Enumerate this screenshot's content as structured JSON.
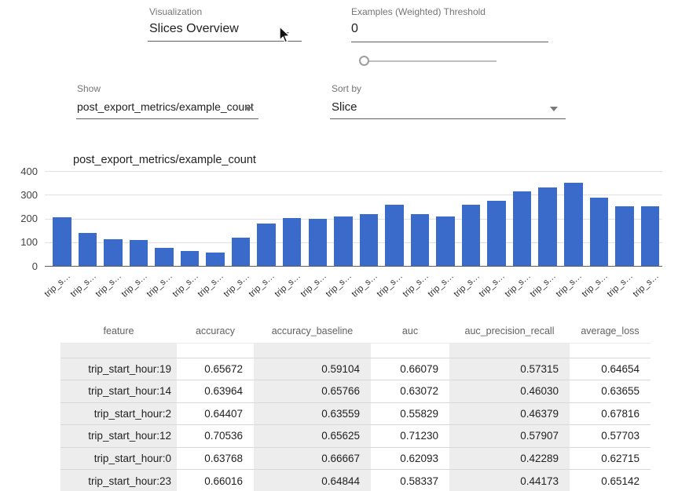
{
  "controls": {
    "visualization": {
      "label": "Visualization",
      "value": "Slices Overview"
    },
    "threshold": {
      "label": "Examples (Weighted) Threshold",
      "value": "0"
    },
    "show": {
      "label": "Show",
      "value": "post_export_metrics/example_count"
    },
    "sort": {
      "label": "Sort by",
      "value": "Slice"
    }
  },
  "chart_data": {
    "type": "bar",
    "legend": "post_export_metrics/example_count",
    "bar_color": "#3b6bca",
    "xlabel": "",
    "ylabel": "",
    "ylim": [
      0,
      400
    ],
    "yticks": [
      0,
      100,
      200,
      300,
      400
    ],
    "grid": true,
    "legend_position": "top-left",
    "categories": [
      "trip_s…",
      "trip_s…",
      "trip_s…",
      "trip_s…",
      "trip_s…",
      "trip_s…",
      "trip_s…",
      "trip_s…",
      "trip_s…",
      "trip_s…",
      "trip_s…",
      "trip_s…",
      "trip_s…",
      "trip_s…",
      "trip_s…",
      "trip_s…",
      "trip_s…",
      "trip_s…",
      "trip_s…",
      "trip_s…",
      "trip_s…",
      "trip_s…",
      "trip_s…",
      "trip_s…"
    ],
    "values": [
      205,
      140,
      112,
      108,
      75,
      64,
      57,
      118,
      177,
      203,
      200,
      207,
      218,
      259,
      219,
      207,
      258,
      275,
      313,
      331,
      352,
      288,
      250,
      252
    ]
  },
  "table": {
    "columns": [
      "feature",
      "accuracy",
      "accuracy_baseline",
      "auc",
      "auc_precision_recall",
      "average_loss"
    ],
    "rows": [
      [
        "trip_start_hour:19",
        "0.65672",
        "0.59104",
        "0.66079",
        "0.57315",
        "0.64654"
      ],
      [
        "trip_start_hour:14",
        "0.63964",
        "0.65766",
        "0.63072",
        "0.46030",
        "0.63655"
      ],
      [
        "trip_start_hour:2",
        "0.64407",
        "0.63559",
        "0.55829",
        "0.46379",
        "0.67816"
      ],
      [
        "trip_start_hour:12",
        "0.70536",
        "0.65625",
        "0.71230",
        "0.57907",
        "0.57703"
      ],
      [
        "trip_start_hour:0",
        "0.63768",
        "0.66667",
        "0.62093",
        "0.42289",
        "0.62715"
      ],
      [
        "trip_start_hour:23",
        "0.66016",
        "0.64844",
        "0.58337",
        "0.44173",
        "0.65142"
      ]
    ]
  }
}
